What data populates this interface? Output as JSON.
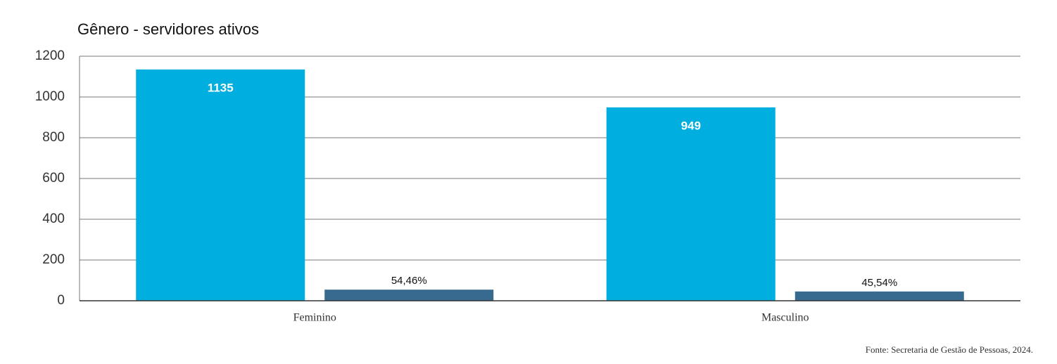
{
  "chart_data": {
    "type": "bar",
    "title": "Gênero - servidores ativos",
    "categories": [
      "Feminino",
      "Masculino"
    ],
    "series": [
      {
        "color": "#00aedf",
        "values": [
          1135,
          949
        ]
      },
      {
        "color": "#376a8e",
        "values": [
          54.46,
          45.54
        ],
        "value_labels": [
          "54,46%",
          "45,54%"
        ]
      }
    ],
    "ylim": [
      0,
      1200
    ],
    "yticks": [
      0,
      200,
      400,
      600,
      800,
      1000,
      1200
    ],
    "grid": true,
    "source": "Fonte: Secretaria de Gestão de Pessoas, 2024."
  }
}
